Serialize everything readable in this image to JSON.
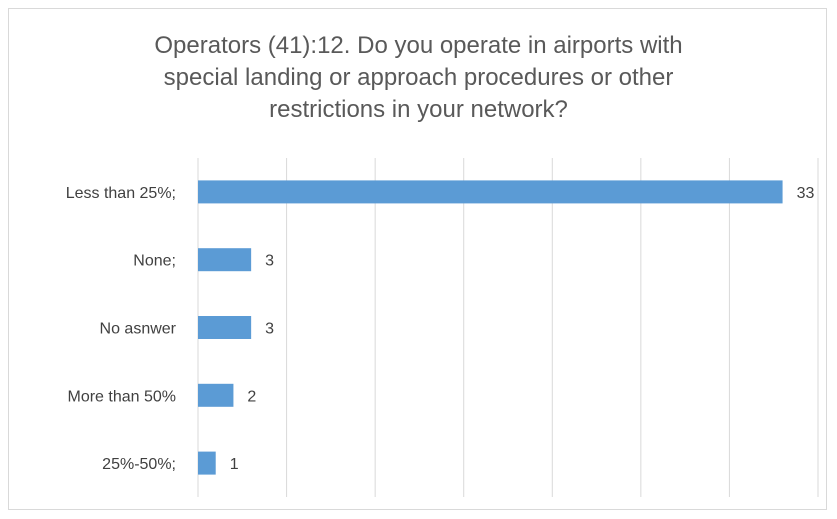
{
  "chart_data": {
    "type": "bar",
    "orientation": "horizontal",
    "title_lines": [
      "Operators (41):12. Do you operate in airports with",
      "special landing or approach procedures or other",
      "restrictions in your network?"
    ],
    "categories": [
      "Less than 25%;",
      "None;",
      "No asnwer",
      "More than 50%",
      "25%-50%;"
    ],
    "values": [
      33,
      3,
      3,
      2,
      1
    ],
    "xlim": [
      0,
      35
    ],
    "grid": true,
    "legend": "none",
    "bar_color": "#5b9bd5",
    "grid_color": "#d9d9d9"
  }
}
